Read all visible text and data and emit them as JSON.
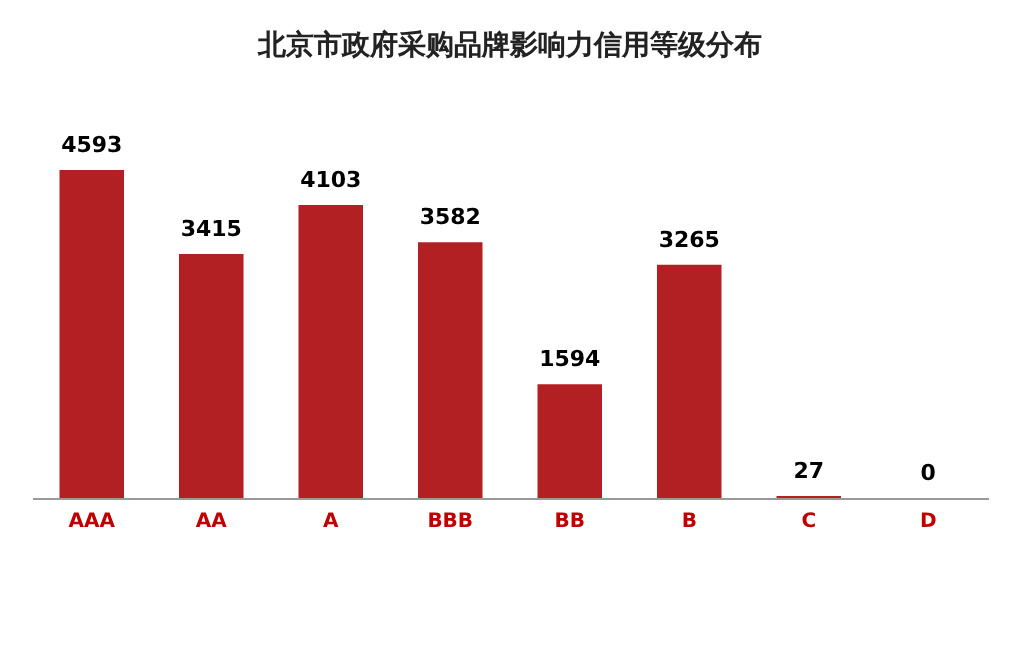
{
  "chart_data": {
    "type": "bar",
    "title": "北京市政府采购品牌影响力信用等级分布",
    "categories": [
      "AAA",
      "AA",
      "A",
      "BBB",
      "BB",
      "B",
      "C",
      "D"
    ],
    "values": [
      4593,
      3415,
      4103,
      3582,
      1594,
      3265,
      27,
      0
    ],
    "color": "#b22024",
    "data_labels": true
  }
}
